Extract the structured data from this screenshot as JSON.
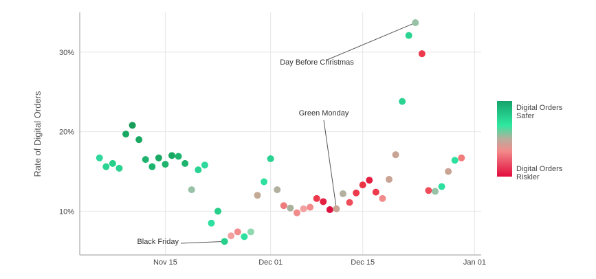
{
  "chart_data": {
    "type": "scatter",
    "title": "",
    "xlabel": "",
    "ylabel": "Rate of Digital Orders",
    "x_ticks": [
      "Nov 15",
      "Dec 01",
      "Dec 15",
      "Jan 01"
    ],
    "y_ticks": [
      "10%",
      "20%",
      "30%"
    ],
    "xlim": [
      0,
      61
    ],
    "ylim": [
      4.5,
      35
    ],
    "grid": true,
    "legend": {
      "position": "right",
      "labels": [
        "Digital Orders\nSafer",
        "Digital Orders\nRiskler"
      ],
      "colors": [
        "#16a36b",
        "#2ee8a0",
        "#f28b8b",
        "#e30b3d"
      ]
    },
    "points": [
      {
        "day": 3.0,
        "value": 16.7,
        "color": "#2fd89c"
      },
      {
        "day": 4.0,
        "value": 15.6,
        "color": "#2ad391"
      },
      {
        "day": 5.0,
        "value": 16.0,
        "color": "#26cf8a"
      },
      {
        "day": 6.0,
        "value": 15.4,
        "color": "#2ad391"
      },
      {
        "day": 7.0,
        "value": 19.7,
        "color": "#19a862"
      },
      {
        "day": 8.0,
        "value": 20.8,
        "color": "#169e5a"
      },
      {
        "day": 9.0,
        "value": 19.0,
        "color": "#19a862"
      },
      {
        "day": 10.0,
        "value": 16.5,
        "color": "#1eb46e"
      },
      {
        "day": 11.0,
        "value": 15.6,
        "color": "#1eb46e"
      },
      {
        "day": 12.0,
        "value": 16.7,
        "color": "#19a862"
      },
      {
        "day": 13.0,
        "value": 15.9,
        "color": "#1eb46e"
      },
      {
        "day": 14.0,
        "value": 17.0,
        "color": "#19a862"
      },
      {
        "day": 15.0,
        "value": 16.9,
        "color": "#1eb46e"
      },
      {
        "day": 16.0,
        "value": 16.0,
        "color": "#1eb46e"
      },
      {
        "day": 17.0,
        "value": 12.7,
        "color": "#97c2a6"
      },
      {
        "day": 18.0,
        "value": 15.2,
        "color": "#2ad391"
      },
      {
        "day": 19.0,
        "value": 15.8,
        "color": "#2fd89c"
      },
      {
        "day": 20.0,
        "value": 8.5,
        "color": "#2ee0a0"
      },
      {
        "day": 21.0,
        "value": 10.0,
        "color": "#26cf8a"
      },
      {
        "day": 22.0,
        "value": 6.2,
        "color": "#26cf8a"
      },
      {
        "day": 23.0,
        "value": 6.9,
        "color": "#f2a0a0"
      },
      {
        "day": 24.0,
        "value": 7.4,
        "color": "#f28b8b"
      },
      {
        "day": 25.0,
        "value": 6.8,
        "color": "#2ee0a0"
      },
      {
        "day": 26.0,
        "value": 7.4,
        "color": "#8fd9b0"
      },
      {
        "day": 27.0,
        "value": 12.0,
        "color": "#c4aa95"
      },
      {
        "day": 28.0,
        "value": 13.7,
        "color": "#2ee0a0"
      },
      {
        "day": 29.0,
        "value": 16.6,
        "color": "#2ad391"
      },
      {
        "day": 30.0,
        "value": 12.7,
        "color": "#b3b0a0"
      },
      {
        "day": 31.0,
        "value": 10.7,
        "color": "#ee7b7b"
      },
      {
        "day": 32.0,
        "value": 10.4,
        "color": "#a9b09c"
      },
      {
        "day": 33.0,
        "value": 9.8,
        "color": "#f28b8b"
      },
      {
        "day": 34.0,
        "value": 10.3,
        "color": "#f2a0a0"
      },
      {
        "day": 35.0,
        "value": 10.5,
        "color": "#f28b8b"
      },
      {
        "day": 36.0,
        "value": 11.6,
        "color": "#ec3a4c"
      },
      {
        "day": 37.0,
        "value": 11.2,
        "color": "#e41f41"
      },
      {
        "day": 38.0,
        "value": 10.2,
        "color": "#dc1140"
      },
      {
        "day": 39.0,
        "value": 10.3,
        "color": "#c9a393"
      },
      {
        "day": 40.0,
        "value": 12.2,
        "color": "#b3b0a0"
      },
      {
        "day": 41.0,
        "value": 11.1,
        "color": "#ee4d5a"
      },
      {
        "day": 42.0,
        "value": 12.3,
        "color": "#ec3a4c"
      },
      {
        "day": 43.0,
        "value": 13.3,
        "color": "#ea3345"
      },
      {
        "day": 44.0,
        "value": 13.9,
        "color": "#e41f41"
      },
      {
        "day": 45.0,
        "value": 12.4,
        "color": "#ec3a4c"
      },
      {
        "day": 46.0,
        "value": 11.6,
        "color": "#f28b8b"
      },
      {
        "day": 47.0,
        "value": 14.0,
        "color": "#c9a393"
      },
      {
        "day": 48.0,
        "value": 17.1,
        "color": "#c9a393"
      },
      {
        "day": 49.0,
        "value": 23.8,
        "color": "#2ad391"
      },
      {
        "day": 50.0,
        "value": 32.1,
        "color": "#2ad391"
      },
      {
        "day": 51.0,
        "value": 33.7,
        "color": "#97c2a6"
      },
      {
        "day": 52.0,
        "value": 29.8,
        "color": "#ec3a4c"
      },
      {
        "day": 53.0,
        "value": 12.6,
        "color": "#ee4d5a"
      },
      {
        "day": 54.0,
        "value": 12.5,
        "color": "#97c2a6"
      },
      {
        "day": 55.0,
        "value": 13.1,
        "color": "#2ee0a0"
      },
      {
        "day": 56.0,
        "value": 15.0,
        "color": "#c9a393"
      },
      {
        "day": 57.0,
        "value": 16.4,
        "color": "#2ee0a0"
      },
      {
        "day": 58.0,
        "value": 16.7,
        "color": "#f27b7b"
      }
    ],
    "annotations": [
      {
        "text": "Black Friday",
        "day": 22.0,
        "value": 6.2
      },
      {
        "text": "Green Monday",
        "day": 39.0,
        "value": 10.3
      },
      {
        "text": "Day Before Christmas",
        "day": 51.0,
        "value": 33.7
      }
    ]
  }
}
